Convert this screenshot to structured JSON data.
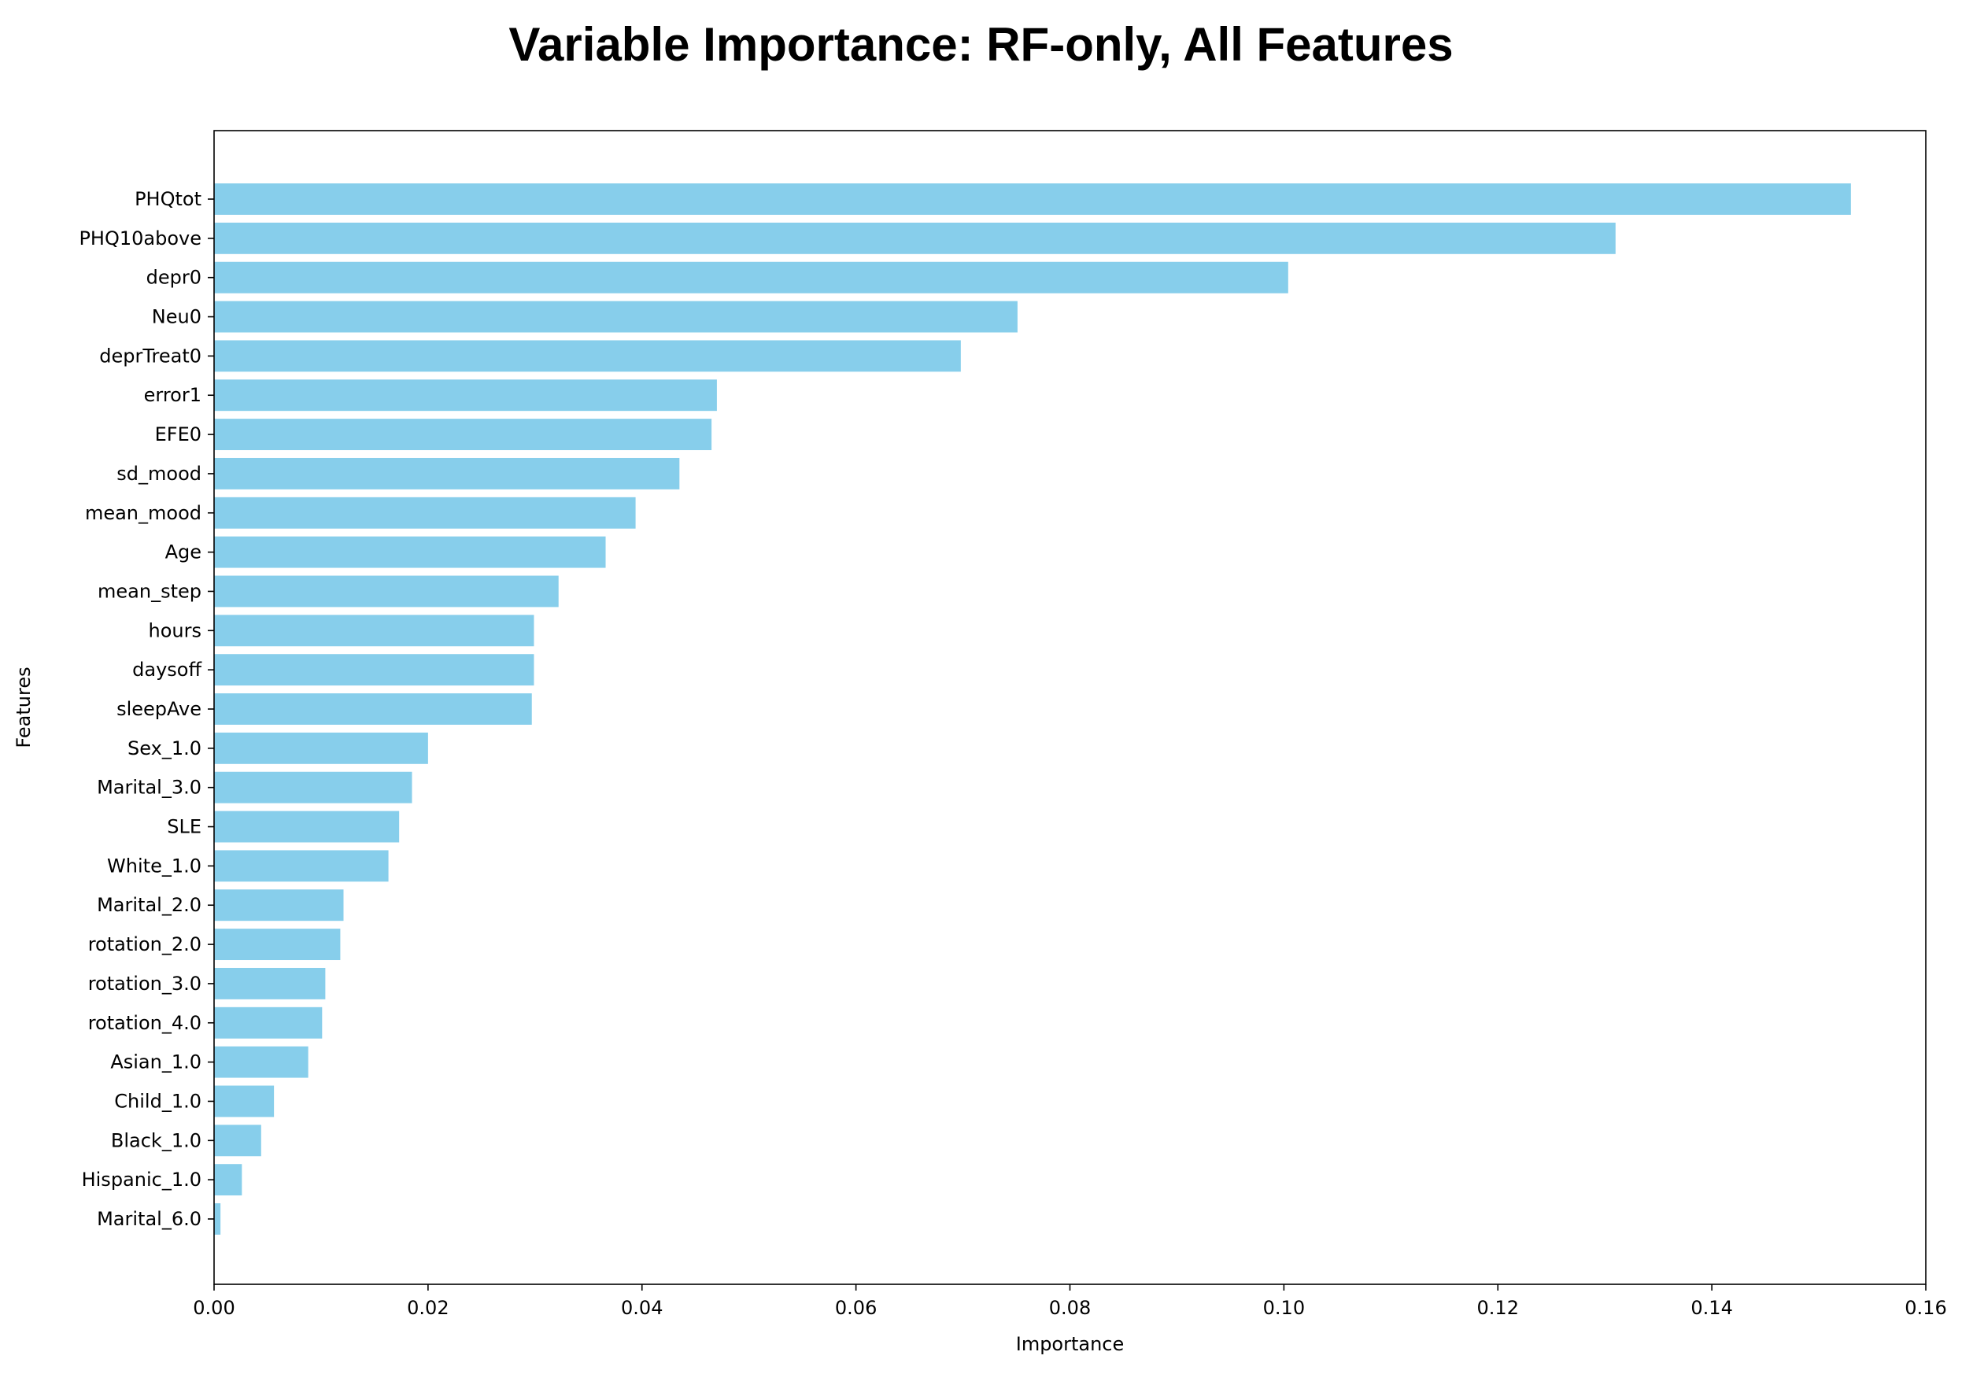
{
  "chart_data": {
    "type": "bar",
    "orientation": "horizontal",
    "title": "Variable Importance: RF-only, All Features",
    "xlabel": "Importance",
    "ylabel": "Features",
    "xlim": [
      0,
      0.16
    ],
    "xticks": [
      "0.00",
      "0.02",
      "0.04",
      "0.06",
      "0.08",
      "0.10",
      "0.12",
      "0.14",
      "0.16"
    ],
    "bar_color": "#87ceeb",
    "grid": false,
    "legend": "none",
    "categories": [
      "PHQtot",
      "PHQ10above",
      "depr0",
      "Neu0",
      "deprTreat0",
      "error1",
      "EFE0",
      "sd_mood",
      "mean_mood",
      "Age",
      "mean_step",
      "hours",
      "daysoff",
      "sleepAve",
      "Sex_1.0",
      "Marital_3.0",
      "SLE",
      "White_1.0",
      "Marital_2.0",
      "rotation_2.0",
      "rotation_3.0",
      "rotation_4.0",
      "Asian_1.0",
      "Child_1.0",
      "Black_1.0",
      "Hispanic_1.0",
      "Marital_6.0"
    ],
    "values": [
      0.153,
      0.131,
      0.1004,
      0.0751,
      0.0698,
      0.047,
      0.0465,
      0.0435,
      0.0394,
      0.0366,
      0.0322,
      0.0299,
      0.0299,
      0.0297,
      0.02,
      0.0185,
      0.0173,
      0.0163,
      0.0121,
      0.0118,
      0.0104,
      0.0101,
      0.0088,
      0.0056,
      0.0044,
      0.0026,
      0.0006
    ]
  }
}
